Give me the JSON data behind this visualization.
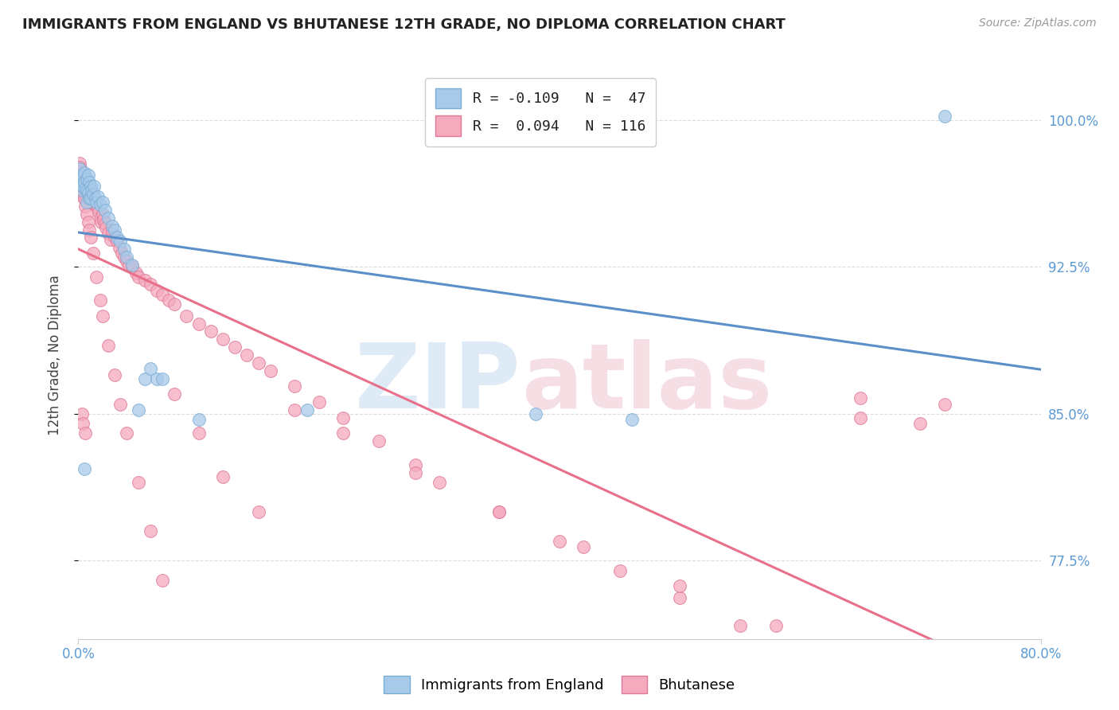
{
  "title": "IMMIGRANTS FROM ENGLAND VS BHUTANESE 12TH GRADE, NO DIPLOMA CORRELATION CHART",
  "source": "Source: ZipAtlas.com",
  "ylabel": "12th Grade, No Diploma",
  "ytick_labels": [
    "100.0%",
    "92.5%",
    "85.0%",
    "77.5%"
  ],
  "ytick_values": [
    1.0,
    0.925,
    0.85,
    0.775
  ],
  "xtick_left_label": "0.0%",
  "xtick_right_label": "80.0%",
  "xmin": 0.0,
  "xmax": 0.8,
  "ymin": 0.735,
  "ymax": 1.025,
  "color_england": "#A8CAEA",
  "color_england_edge": "#7AADD4",
  "color_bhutanese": "#F5AABE",
  "color_bhutanese_edge": "#E07898",
  "color_england_line": "#5B8FC9",
  "color_bhutanese_line": "#E8708A",
  "england_R": -0.109,
  "england_N": 47,
  "bhutanese_R": 0.094,
  "bhutanese_N": 116,
  "watermark_zip_color": "#C8DCF0",
  "watermark_atlas_color": "#F0C8D4",
  "grid_color": "#DDDDDD",
  "title_color": "#222222",
  "source_color": "#999999",
  "tick_color": "#5B9BD5",
  "ylabel_color": "#444444",
  "england_x": [
    0.001,
    0.002,
    0.002,
    0.003,
    0.003,
    0.004,
    0.004,
    0.005,
    0.005,
    0.006,
    0.007,
    0.007,
    0.007,
    0.008,
    0.008,
    0.009,
    0.009,
    0.01,
    0.01,
    0.011,
    0.012,
    0.013,
    0.014,
    0.015,
    0.016,
    0.018,
    0.02,
    0.022,
    0.025,
    0.028,
    0.03,
    0.032,
    0.035,
    0.038,
    0.04,
    0.045,
    0.05,
    0.055,
    0.06,
    0.065,
    0.07,
    0.1,
    0.19,
    0.38,
    0.46,
    0.72,
    0.005
  ],
  "england_y": [
    0.975,
    0.971,
    0.967,
    0.969,
    0.964,
    0.972,
    0.966,
    0.973,
    0.968,
    0.965,
    0.97,
    0.964,
    0.958,
    0.972,
    0.963,
    0.968,
    0.96,
    0.966,
    0.96,
    0.964,
    0.962,
    0.966,
    0.96,
    0.958,
    0.961,
    0.957,
    0.958,
    0.954,
    0.95,
    0.946,
    0.944,
    0.94,
    0.938,
    0.934,
    0.93,
    0.926,
    0.852,
    0.868,
    0.873,
    0.868,
    0.868,
    0.847,
    0.852,
    0.85,
    0.847,
    1.002,
    0.822
  ],
  "bhutanese_x": [
    0.001,
    0.001,
    0.002,
    0.002,
    0.002,
    0.003,
    0.003,
    0.003,
    0.004,
    0.004,
    0.004,
    0.005,
    0.005,
    0.005,
    0.006,
    0.006,
    0.007,
    0.007,
    0.008,
    0.008,
    0.009,
    0.009,
    0.01,
    0.01,
    0.011,
    0.011,
    0.012,
    0.013,
    0.014,
    0.015,
    0.016,
    0.017,
    0.018,
    0.019,
    0.02,
    0.021,
    0.022,
    0.023,
    0.025,
    0.027,
    0.028,
    0.03,
    0.032,
    0.034,
    0.036,
    0.038,
    0.04,
    0.042,
    0.045,
    0.048,
    0.05,
    0.055,
    0.06,
    0.065,
    0.07,
    0.075,
    0.08,
    0.09,
    0.1,
    0.11,
    0.12,
    0.13,
    0.14,
    0.15,
    0.16,
    0.18,
    0.2,
    0.22,
    0.25,
    0.28,
    0.3,
    0.35,
    0.4,
    0.45,
    0.5,
    0.55,
    0.6,
    0.65,
    0.7,
    0.001,
    0.002,
    0.003,
    0.004,
    0.005,
    0.006,
    0.007,
    0.008,
    0.009,
    0.01,
    0.012,
    0.015,
    0.018,
    0.02,
    0.025,
    0.03,
    0.035,
    0.04,
    0.05,
    0.06,
    0.07,
    0.08,
    0.1,
    0.12,
    0.15,
    0.18,
    0.22,
    0.28,
    0.35,
    0.42,
    0.5,
    0.58,
    0.65,
    0.72,
    0.003,
    0.004,
    0.006
  ],
  "bhutanese_y": [
    0.978,
    0.973,
    0.975,
    0.971,
    0.966,
    0.973,
    0.968,
    0.963,
    0.97,
    0.966,
    0.961,
    0.972,
    0.967,
    0.962,
    0.969,
    0.965,
    0.97,
    0.964,
    0.968,
    0.963,
    0.966,
    0.961,
    0.965,
    0.96,
    0.963,
    0.958,
    0.962,
    0.96,
    0.957,
    0.958,
    0.955,
    0.953,
    0.95,
    0.948,
    0.952,
    0.949,
    0.947,
    0.945,
    0.942,
    0.939,
    0.943,
    0.94,
    0.938,
    0.935,
    0.932,
    0.93,
    0.928,
    0.926,
    0.925,
    0.922,
    0.92,
    0.918,
    0.916,
    0.913,
    0.911,
    0.908,
    0.906,
    0.9,
    0.896,
    0.892,
    0.888,
    0.884,
    0.88,
    0.876,
    0.872,
    0.864,
    0.856,
    0.848,
    0.836,
    0.824,
    0.815,
    0.8,
    0.785,
    0.77,
    0.756,
    0.742,
    0.728,
    0.858,
    0.845,
    0.976,
    0.972,
    0.968,
    0.964,
    0.96,
    0.956,
    0.952,
    0.948,
    0.944,
    0.94,
    0.932,
    0.92,
    0.908,
    0.9,
    0.885,
    0.87,
    0.855,
    0.84,
    0.815,
    0.79,
    0.765,
    0.86,
    0.84,
    0.818,
    0.8,
    0.852,
    0.84,
    0.82,
    0.8,
    0.782,
    0.762,
    0.742,
    0.848,
    0.855,
    0.85,
    0.845,
    0.84
  ]
}
